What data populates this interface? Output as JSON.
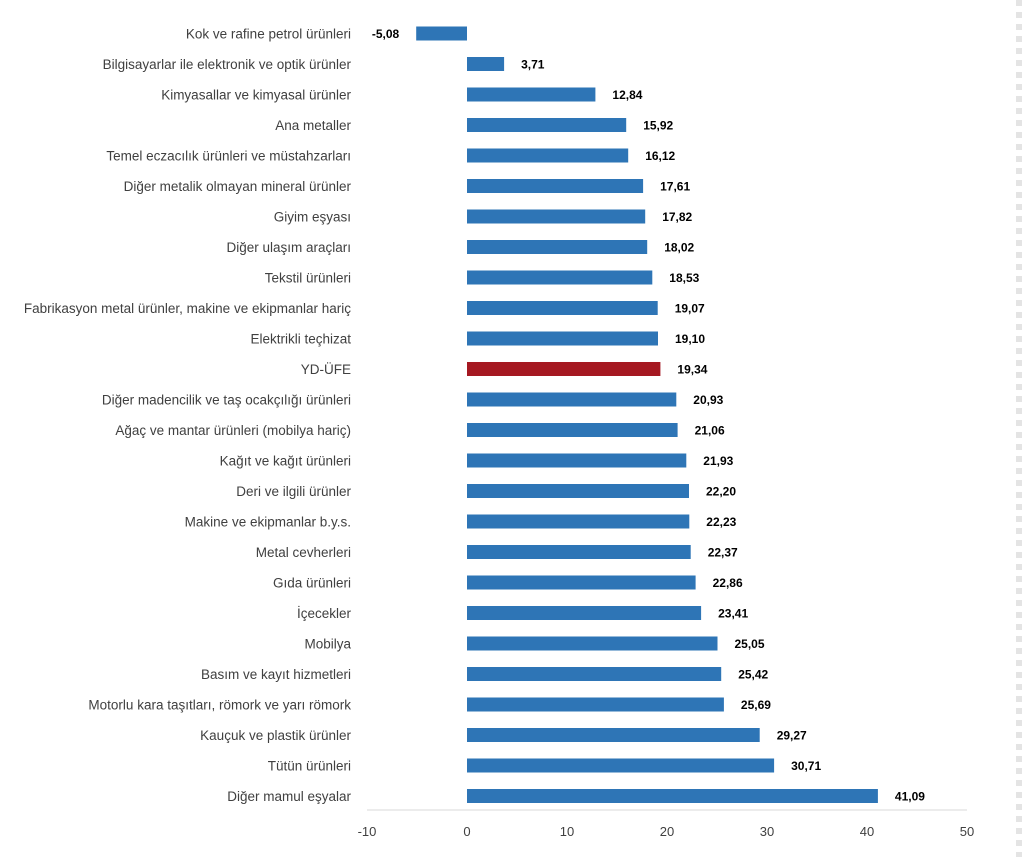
{
  "chart_data": {
    "type": "bar",
    "orientation": "horizontal",
    "title": "",
    "xlabel": "",
    "ylabel": "",
    "xlim": [
      -10,
      50
    ],
    "xticks": [
      -10,
      0,
      10,
      20,
      30,
      40,
      50
    ],
    "xtick_labels": [
      "-10",
      "0",
      "10",
      "20",
      "30",
      "40",
      "50"
    ],
    "grid": false,
    "legend": "none",
    "colors": {
      "default": "#2E75B6",
      "highlight": "#A51821"
    },
    "highlight_category": "YD-ÜFE",
    "categories": [
      "Kok ve rafine petrol ürünleri",
      "Bilgisayarlar ile elektronik ve optik ürünler",
      "Kimyasallar ve kimyasal ürünler",
      "Ana metaller",
      "Temel eczacılık ürünleri ve müstahzarları",
      "Diğer metalik olmayan mineral ürünler",
      "Giyim eşyası",
      "Diğer ulaşım araçları",
      "Tekstil ürünleri",
      "Fabrikasyon metal ürünler, makine ve ekipmanlar hariç",
      "Elektrikli teçhizat",
      "YD-ÜFE",
      "Diğer madencilik ve taş ocakçılığı ürünleri",
      "Ağaç ve mantar ürünleri (mobilya hariç)",
      "Kağıt ve kağıt ürünleri",
      "Deri ve ilgili ürünler",
      "Makine ve ekipmanlar b.y.s.",
      "Metal cevherleri",
      "Gıda ürünleri",
      "İçecekler",
      "Mobilya",
      "Basım ve kayıt hizmetleri",
      "Motorlu kara taşıtları, römork ve yarı römork",
      "Kauçuk ve plastik ürünler",
      "Tütün ürünleri",
      "Diğer mamul eşyalar"
    ],
    "values": [
      -5.08,
      3.71,
      12.84,
      15.92,
      16.12,
      17.61,
      17.82,
      18.02,
      18.53,
      19.07,
      19.1,
      19.34,
      20.93,
      21.06,
      21.93,
      22.2,
      22.23,
      22.37,
      22.86,
      23.41,
      25.05,
      25.42,
      25.69,
      29.27,
      30.71,
      41.09
    ],
    "value_labels": [
      "-5,08",
      "3,71",
      "12,84",
      "15,92",
      "16,12",
      "17,61",
      "17,82",
      "18,02",
      "18,53",
      "19,07",
      "19,10",
      "19,34",
      "20,93",
      "21,06",
      "21,93",
      "22,20",
      "22,23",
      "22,37",
      "22,86",
      "23,41",
      "25,05",
      "25,42",
      "25,69",
      "29,27",
      "30,71",
      "41,09"
    ]
  }
}
